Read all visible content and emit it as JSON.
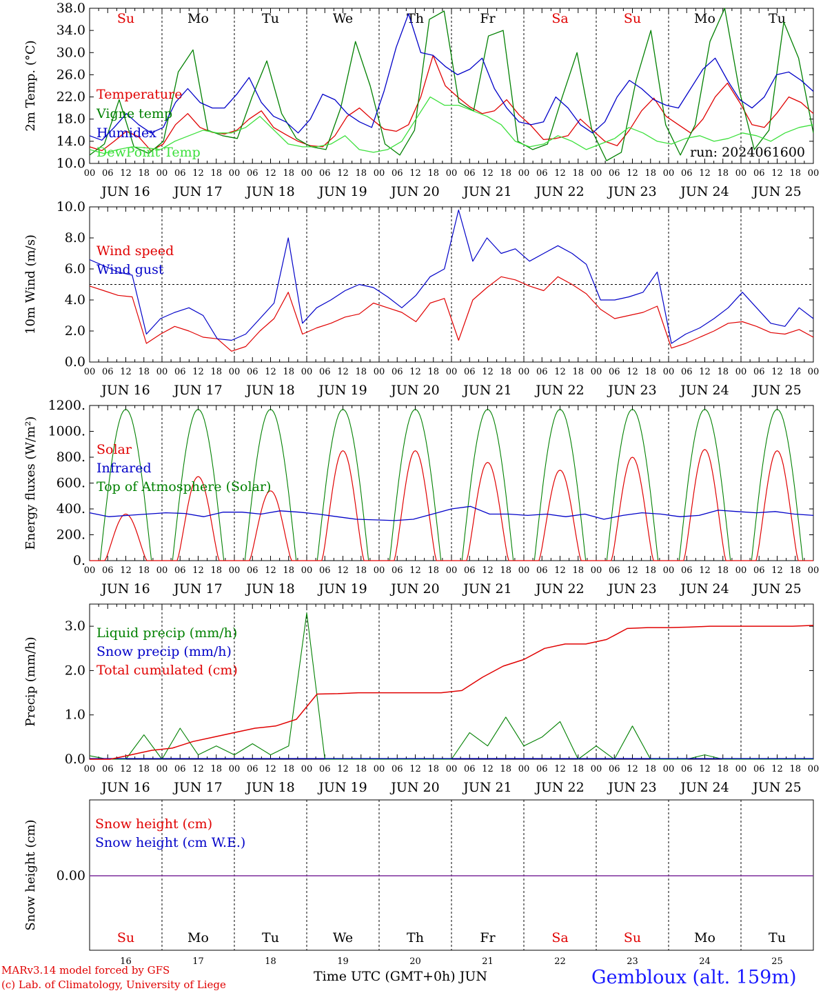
{
  "weekdays": [
    {
      "label": "Su",
      "color": "#e00000"
    },
    {
      "label": "Mo",
      "color": "#000000"
    },
    {
      "label": "Tu",
      "color": "#000000"
    },
    {
      "label": "We",
      "color": "#000000"
    },
    {
      "label": "Th",
      "color": "#000000"
    },
    {
      "label": "Fr",
      "color": "#000000"
    },
    {
      "label": "Sa",
      "color": "#e00000"
    },
    {
      "label": "Su",
      "color": "#e00000"
    },
    {
      "label": "Mo",
      "color": "#000000"
    },
    {
      "label": "Tu",
      "color": "#000000"
    }
  ],
  "day_labels": [
    "JUN 16",
    "JUN 17",
    "JUN 18",
    "JUN 19",
    "JUN 20",
    "JUN 21",
    "JUN 22",
    "JUN 23",
    "JUN 24",
    "JUN 25"
  ],
  "hour_ticks": [
    "00",
    "06",
    "12",
    "18"
  ],
  "bottom_day_numbers": [
    "16",
    "17",
    "18",
    "19",
    "20",
    "21",
    "22",
    "23",
    "24",
    "25"
  ],
  "footer": {
    "model": "MARv3.14 model forced by GFS",
    "copyright": "(c) Lab. of Climatology, University of Liege",
    "xlabel": "Time UTC (GMT+0h) JUN",
    "station": "Gembloux (alt. 159m)"
  },
  "chart_data": [
    {
      "type": "line",
      "ylabel": "2m Temp. (°C)",
      "ylim": [
        10,
        38
      ],
      "yticks": [
        "10.0",
        "14.0",
        "18.0",
        "22.0",
        "26.0",
        "30.0",
        "34.0",
        "38.0"
      ],
      "annotation": "run: 2024061600",
      "x_hours_start": 0,
      "x_hours_step": 6,
      "series": [
        {
          "name": "Temperature",
          "color": "#e00000",
          "values": [
            13,
            12.3,
            14,
            15.8,
            14.8,
            12.3,
            13.5,
            17,
            19,
            16.5,
            15.6,
            15.3,
            16,
            18,
            19.5,
            16.5,
            15.2,
            14,
            13.2,
            13,
            15,
            18.5,
            20,
            18,
            16.2,
            15.8,
            17,
            22,
            29.5,
            24,
            22,
            20.2,
            19,
            19.5,
            21.5,
            18.8,
            16.8,
            14.3,
            14.5,
            15,
            18,
            16,
            14,
            13.2,
            16,
            19.5,
            21.8,
            18.5,
            17,
            15.5,
            18,
            22,
            24.5,
            21,
            17,
            16.5,
            19,
            22,
            21,
            19
          ]
        },
        {
          "name": "Vigne temp",
          "color": "#008000",
          "values": [
            11.5,
            13.5,
            21.5,
            13,
            11.8,
            14,
            26.5,
            30.5,
            16,
            15,
            14.5,
            22,
            28.5,
            19,
            14.5,
            13,
            12.5,
            20,
            32,
            24,
            13.5,
            11.5,
            16,
            36,
            37.5,
            21,
            19.5,
            33,
            34,
            14,
            12.5,
            13.5,
            22,
            30,
            16,
            10.5,
            12,
            25,
            34,
            17,
            11.5,
            17,
            32,
            38,
            23,
            12.5,
            16,
            35.5,
            29,
            15.5
          ]
        },
        {
          "name": "Humidex",
          "color": "#0000c8",
          "values": [
            15,
            14.2,
            16.5,
            19,
            17,
            15.5,
            16.5,
            21,
            23.5,
            21,
            20,
            20,
            22.5,
            25.5,
            21,
            18.5,
            17.5,
            15.5,
            18,
            22.5,
            21.5,
            19,
            17.5,
            16.5,
            23,
            31,
            37,
            30,
            29.5,
            27.5,
            26,
            27,
            29,
            23.5,
            20,
            17.5,
            17,
            17.5,
            22,
            20,
            17,
            15.5,
            17.5,
            22,
            25,
            23.5,
            21.5,
            20.5,
            20,
            23.5,
            27,
            29,
            25,
            21.5,
            20,
            22,
            26,
            26.5,
            25,
            23
          ]
        },
        {
          "name": "DewPoint Temp",
          "color": "#3ce03c",
          "values": [
            12.5,
            11.8,
            12.5,
            13,
            12.8,
            12.5,
            14,
            15,
            16,
            15.5,
            15.5,
            16.5,
            18.5,
            16,
            13.5,
            13,
            13,
            13.5,
            15,
            12.5,
            12,
            12.5,
            14,
            18,
            22,
            20.5,
            20.5,
            19.5,
            18.5,
            17,
            14,
            13,
            13.5,
            15,
            14,
            12.5,
            13.5,
            14.5,
            16.5,
            15.5,
            14,
            13.5,
            14.5,
            15,
            14,
            14.5,
            15.5,
            15,
            14,
            15.5,
            16.5,
            17
          ]
        }
      ]
    },
    {
      "type": "line",
      "ylabel": "10m Wind (m/s)",
      "ylim": [
        0,
        10
      ],
      "yticks": [
        "0.0",
        "2.0",
        "4.0",
        "6.0",
        "8.0",
        "10.0"
      ],
      "x_hours_start": 0,
      "x_hours_step": 6,
      "reference_line": 5,
      "series": [
        {
          "name": "Wind speed",
          "color": "#e00000",
          "values": [
            4.9,
            4.6,
            4.3,
            4.2,
            1.2,
            1.8,
            2.3,
            2.0,
            1.6,
            1.5,
            0.7,
            1.0,
            2.0,
            2.8,
            4.5,
            1.8,
            2.2,
            2.5,
            2.9,
            3.1,
            3.8,
            3.5,
            3.2,
            2.6,
            3.8,
            4.1,
            1.4,
            4.0,
            4.8,
            5.5,
            5.3,
            4.9,
            4.6,
            5.5,
            5.0,
            4.4,
            3.4,
            2.8,
            3.0,
            3.2,
            3.6,
            0.9,
            1.2,
            1.6,
            2.0,
            2.5,
            2.6,
            2.3,
            1.9,
            1.8,
            2.1,
            1.6
          ]
        },
        {
          "name": "Wind gust",
          "color": "#0000c8",
          "values": [
            6.6,
            6.2,
            5.8,
            5.6,
            1.8,
            2.8,
            3.2,
            3.5,
            3.0,
            1.5,
            1.4,
            1.8,
            2.8,
            3.8,
            8.0,
            2.5,
            3.5,
            4.0,
            4.6,
            5.0,
            4.8,
            4.2,
            3.5,
            4.3,
            5.5,
            6.0,
            9.8,
            6.5,
            8.0,
            7.0,
            7.3,
            6.5,
            7.0,
            7.5,
            7.0,
            6.3,
            4.0,
            4.0,
            4.2,
            4.5,
            5.8,
            1.2,
            1.8,
            2.2,
            2.8,
            3.5,
            4.5,
            3.5,
            2.5,
            2.3,
            3.5,
            2.8
          ]
        }
      ]
    },
    {
      "type": "line",
      "ylabel": "Energy fluxes (W/m²)",
      "ylim": [
        0,
        1200
      ],
      "yticks": [
        "0.",
        "200.",
        "400.",
        "600.",
        "800.",
        "1000.",
        "1200."
      ],
      "x_hours_start": 0,
      "x_hours_step": 6,
      "series": [
        {
          "name": "Solar",
          "color": "#e00000",
          "daily_peaks": [
            360,
            650,
            540,
            850,
            850,
            760,
            700,
            800,
            860,
            850
          ]
        },
        {
          "name": "Infrared",
          "color": "#0000c8",
          "values": [
            370,
            340,
            350,
            360,
            370,
            365,
            340,
            375,
            375,
            360,
            385,
            375,
            360,
            340,
            320,
            315,
            310,
            320,
            360,
            400,
            420,
            360,
            360,
            350,
            360,
            340,
            360,
            320,
            350,
            370,
            360,
            340,
            350,
            390,
            380,
            370,
            380,
            360,
            350
          ]
        },
        {
          "name": "Top of Atmosphere (Solar)",
          "color": "#008000",
          "daily_peak": 1170
        }
      ]
    },
    {
      "type": "line",
      "ylabel": "Precip (mm/h)",
      "ylim": [
        0,
        3.5
      ],
      "yticks": [
        "0.0",
        "1.0",
        "2.0",
        "3.0"
      ],
      "x_hours_start": 0,
      "x_hours_step": 6,
      "series": [
        {
          "name": "Liquid precip (mm/h)",
          "color": "#008000",
          "values": [
            0.08,
            0.0,
            0.0,
            0.55,
            0.0,
            0.7,
            0.1,
            0.3,
            0.1,
            0.35,
            0.1,
            0.3,
            3.3,
            0.0,
            0.0,
            0.0,
            0.0,
            0.0,
            0.0,
            0.0,
            0.0,
            0.6,
            0.3,
            0.95,
            0.3,
            0.5,
            0.85,
            0.0,
            0.3,
            0.0,
            0.75,
            0.0,
            0.0,
            0.0,
            0.1,
            0.0,
            0.0,
            0.0,
            0.0,
            0.0,
            0.0
          ]
        },
        {
          "name": "Snow precip (mm/h)",
          "color": "#0000c8",
          "values": [
            0
          ]
        },
        {
          "name": "Total cumulated (cm)",
          "color": "#e00000",
          "values": [
            0.0,
            0.0,
            0.1,
            0.2,
            0.25,
            0.4,
            0.5,
            0.6,
            0.7,
            0.75,
            0.9,
            1.47,
            1.48,
            1.5,
            1.5,
            1.5,
            1.5,
            1.5,
            1.55,
            1.85,
            2.1,
            2.25,
            2.5,
            2.6,
            2.6,
            2.7,
            2.95,
            2.97,
            2.97,
            2.98,
            3.0,
            3.0,
            3.0,
            3.0,
            3.0,
            3.02
          ]
        }
      ]
    },
    {
      "type": "line",
      "ylabel": "Snow height (cm)",
      "yticks": [
        "0.00"
      ],
      "series": [
        {
          "name": "Snow height (cm)",
          "color": "#e00000",
          "values": [
            0,
            0
          ]
        },
        {
          "name": "Snow height (cm W.E.)",
          "color": "#0000c8",
          "values": [
            0,
            0
          ]
        }
      ]
    }
  ]
}
